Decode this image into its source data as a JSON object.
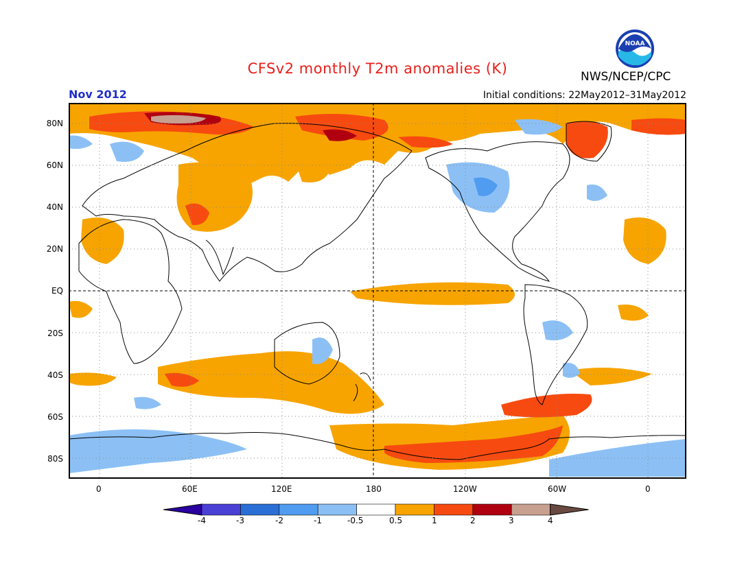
{
  "title": "CFSv2 monthly T2m anomalies (K)",
  "agency": "NWS/NCEP/CPC",
  "logo_text": "NOAA",
  "month": "Nov 2012",
  "initial_conditions": "Initial conditions: 22May2012–31May2012",
  "map": {
    "lat_labels": [
      "80N",
      "60N",
      "40N",
      "20N",
      "EQ",
      "20S",
      "40S",
      "60S",
      "80S"
    ],
    "lon_labels": [
      "0",
      "60E",
      "120E",
      "180",
      "120W",
      "60W",
      "0"
    ],
    "grid": "dotted",
    "reference_lines": [
      "equator",
      "dateline"
    ]
  },
  "legend": {
    "levels": [
      "-4",
      "-3",
      "-2",
      "-1",
      "-0.5",
      "0.5",
      "1",
      "2",
      "3",
      "4"
    ],
    "colors": [
      "#2a00a0",
      "#4a40d6",
      "#2a6fd6",
      "#4f9cf0",
      "#8cc0f5",
      "#ffffff",
      "#f7a400",
      "#f74a10",
      "#b00010",
      "#c8a090",
      "#6a4a40"
    ]
  },
  "colors": {
    "title": "#e8201c",
    "month": "#2030c8",
    "warm1": "#f7a400",
    "warm2": "#f74a10",
    "warm3": "#b00010",
    "warm4": "#c8a090",
    "cool1": "#8cc0f5",
    "cool2": "#4f9cf0"
  }
}
